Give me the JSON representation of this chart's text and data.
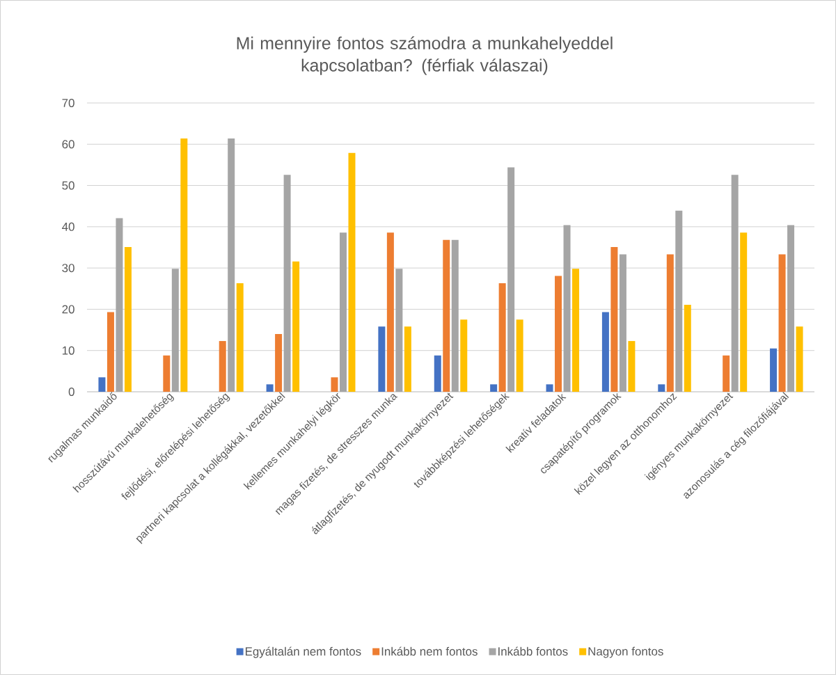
{
  "chart_data": {
    "type": "bar",
    "title": "Mi mennyire fontos számodra a munkahelyeddel kapcsolatban? (férfiak válaszai)",
    "categories": [
      "rugalmas munkaidő",
      "hosszútávú munkalehetőség",
      "fejlődési, előrelépési lehetőség",
      "partneri kapcsolat a kollégákkal, vezetőkkel",
      "kellemes munkahelyi légkör",
      "magas fizetés, de stresszes munka",
      "átlagfizetés, de nyugodt munkakörnyezet",
      "továbbképzési lehetőségek",
      "kreatív feladatok",
      "csapatépítő programok",
      "közel legyen az otthonomhoz",
      "igényes munkakörnyezet",
      "azonosulás a cég filozófiájával"
    ],
    "series": [
      {
        "name": "Egyáltalán nem fontos",
        "color": "#4472c4",
        "values": [
          3.5,
          0,
          0,
          1.8,
          0,
          15.8,
          8.8,
          1.8,
          1.8,
          19.3,
          1.8,
          0,
          10.5
        ]
      },
      {
        "name": "Inkább nem fontos",
        "color": "#ed7d31",
        "values": [
          19.3,
          8.8,
          12.3,
          14.0,
          3.5,
          38.6,
          36.8,
          26.3,
          28.1,
          35.1,
          33.3,
          8.8,
          33.3
        ]
      },
      {
        "name": "Inkább fontos",
        "color": "#a5a5a5",
        "values": [
          42.1,
          29.8,
          61.4,
          52.6,
          38.6,
          29.8,
          36.8,
          54.4,
          40.4,
          33.3,
          43.9,
          52.6,
          40.4
        ]
      },
      {
        "name": "Nagyon fontos",
        "color": "#ffc000",
        "values": [
          35.1,
          61.4,
          26.3,
          31.6,
          57.9,
          15.8,
          17.5,
          17.5,
          29.8,
          12.3,
          21.1,
          38.6,
          15.8
        ]
      }
    ],
    "ylim": [
      0,
      70
    ],
    "yticks": [
      0,
      10,
      20,
      30,
      40,
      50,
      60,
      70
    ],
    "grid": "y",
    "legend": "bottom"
  }
}
